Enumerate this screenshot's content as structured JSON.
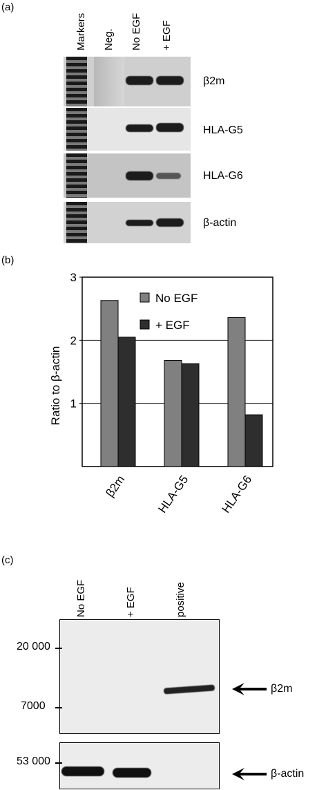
{
  "panel_a": {
    "label": "(a)",
    "lanes": [
      "Markers",
      "Neg.",
      "No EGF",
      "+ EGF"
    ],
    "genes": [
      "β2m",
      "HLA-G5",
      "HLA-G6",
      "β-actin"
    ]
  },
  "panel_b": {
    "label": "(b)",
    "ylabel": "Ratio to β-actin",
    "yticks": [
      "1",
      "2",
      "3"
    ],
    "legend": [
      "No EGF",
      "+  EGF"
    ]
  },
  "panel_c": {
    "label": "(c)",
    "lanes": [
      "No EGF",
      "+ EGF",
      "positive"
    ],
    "mw_markers": [
      "20 000",
      "7000",
      "53 000"
    ],
    "arrows": [
      "β2m",
      "β-actin"
    ]
  },
  "colors": {
    "no_egf": "#808080",
    "plus_egf": "#2e2e2e"
  },
  "chart_data": {
    "type": "bar",
    "categories": [
      "β2m",
      "HLA-G5",
      "HLA-G6"
    ],
    "series": [
      {
        "name": "No EGF",
        "values": [
          2.63,
          1.68,
          2.36
        ]
      },
      {
        "name": "+  EGF",
        "values": [
          2.05,
          1.63,
          0.82
        ]
      }
    ],
    "xlabel": "",
    "ylabel": "Ratio to β-actin",
    "ylim": [
      0,
      3
    ],
    "grid": true,
    "legend_position": "top-right"
  }
}
